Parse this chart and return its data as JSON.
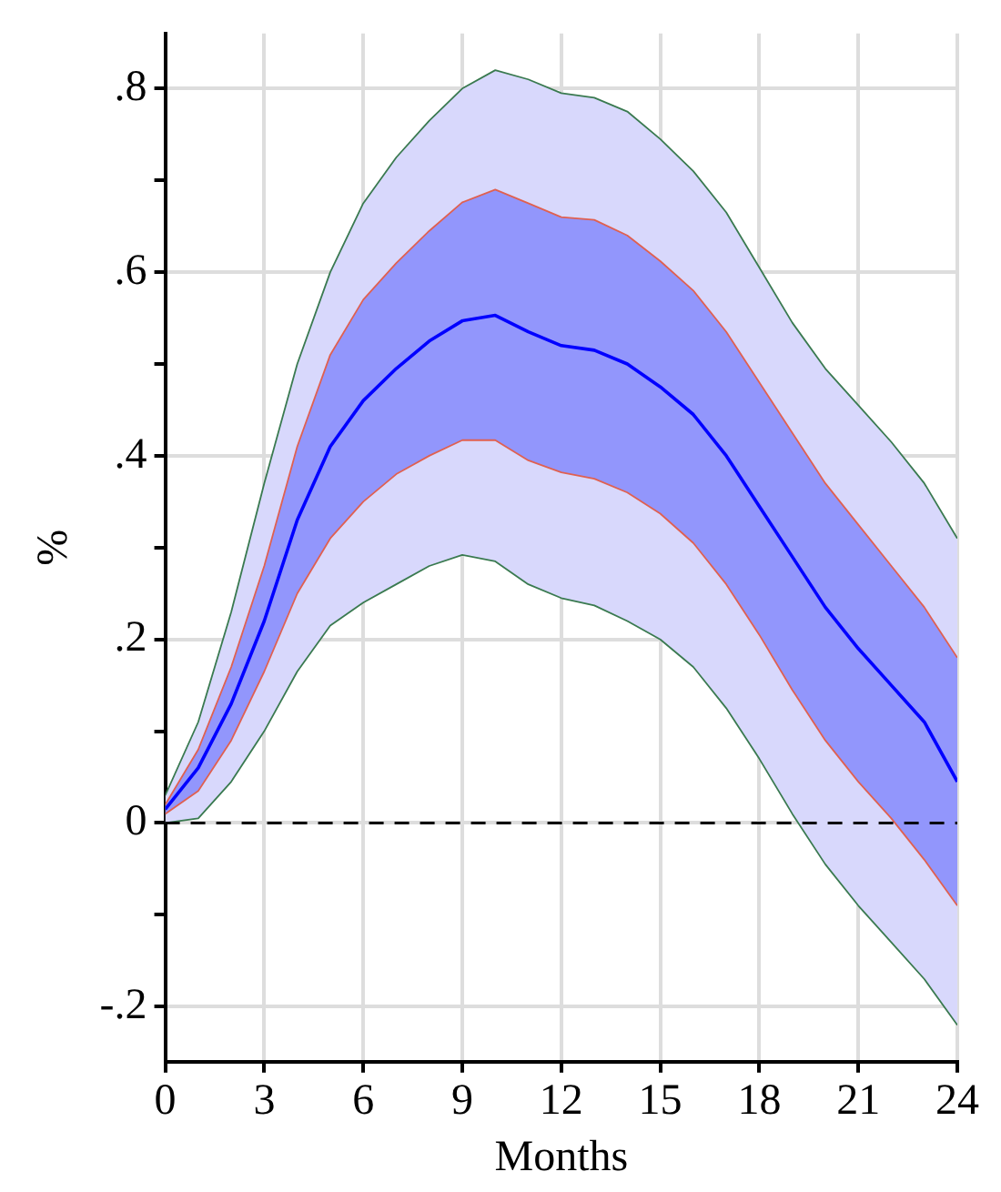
{
  "chart_data": {
    "type": "line",
    "xlabel": "Months",
    "ylabel": "%",
    "x": [
      0,
      1,
      2,
      3,
      4,
      5,
      6,
      7,
      8,
      9,
      10,
      11,
      12,
      13,
      14,
      15,
      16,
      17,
      18,
      19,
      20,
      21,
      22,
      23,
      24
    ],
    "series": [
      {
        "color": "#d8d8fc",
        "values": [
          null,
          null,
          null,
          null,
          null,
          null,
          null,
          null,
          null,
          null,
          null,
          null,
          null,
          null,
          null,
          null,
          null,
          null,
          null,
          null,
          null,
          null,
          null,
          null,
          null
        ],
        "lower": [
          0.0,
          0.005,
          0.045,
          0.1,
          0.165,
          0.215,
          0.24,
          0.26,
          0.28,
          0.292,
          0.285,
          0.26,
          0.245,
          0.237,
          0.22,
          0.2,
          0.17,
          0.125,
          0.07,
          0.01,
          -0.045,
          -0.09,
          -0.13,
          -0.17,
          -0.22
        ],
        "upper": [
          0.03,
          0.11,
          0.23,
          0.37,
          0.5,
          0.6,
          0.675,
          0.725,
          0.765,
          0.8,
          0.82,
          0.81,
          0.795,
          0.79,
          0.775,
          0.745,
          0.71,
          0.665,
          0.605,
          0.545,
          0.495,
          0.455,
          0.415,
          0.37,
          0.31
        ]
      },
      {
        "color": "#9296fc",
        "values": [
          null,
          null,
          null,
          null,
          null,
          null,
          null,
          null,
          null,
          null,
          null,
          null,
          null,
          null,
          null,
          null,
          null,
          null,
          null,
          null,
          null,
          null,
          null,
          null,
          null
        ],
        "lower": [
          0.01,
          0.035,
          0.09,
          0.165,
          0.25,
          0.31,
          0.35,
          0.38,
          0.4,
          0.417,
          0.417,
          0.395,
          0.382,
          0.375,
          0.36,
          0.337,
          0.305,
          0.26,
          0.205,
          0.145,
          0.09,
          0.045,
          0.005,
          -0.04,
          -0.09
        ],
        "upper": [
          0.02,
          0.08,
          0.17,
          0.28,
          0.41,
          0.51,
          0.57,
          0.61,
          0.645,
          0.676,
          0.69,
          0.675,
          0.66,
          0.657,
          0.64,
          0.612,
          0.58,
          0.535,
          0.48,
          0.425,
          0.37,
          0.325,
          0.28,
          0.235,
          0.18
        ]
      },
      {
        "color": "#3a7a50",
        "values": [
          0.03,
          0.11,
          0.23,
          0.37,
          0.5,
          0.6,
          0.675,
          0.725,
          0.765,
          0.8,
          0.82,
          0.81,
          0.795,
          0.79,
          0.775,
          0.745,
          0.71,
          0.665,
          0.605,
          0.545,
          0.495,
          0.455,
          0.415,
          0.37,
          0.31
        ]
      },
      {
        "color": "#3a7a50",
        "values": [
          0.0,
          0.005,
          0.045,
          0.1,
          0.165,
          0.215,
          0.24,
          0.26,
          0.28,
          0.292,
          0.285,
          0.26,
          0.245,
          0.237,
          0.22,
          0.2,
          0.17,
          0.125,
          0.07,
          0.01,
          -0.045,
          -0.09,
          -0.13,
          -0.17,
          -0.22
        ]
      },
      {
        "color": "#e06050",
        "values": [
          0.02,
          0.08,
          0.17,
          0.28,
          0.41,
          0.51,
          0.57,
          0.61,
          0.645,
          0.676,
          0.69,
          0.675,
          0.66,
          0.657,
          0.64,
          0.612,
          0.58,
          0.535,
          0.48,
          0.425,
          0.37,
          0.325,
          0.28,
          0.235,
          0.18
        ]
      },
      {
        "color": "#e06050",
        "values": [
          0.01,
          0.035,
          0.09,
          0.165,
          0.25,
          0.31,
          0.35,
          0.38,
          0.4,
          0.417,
          0.417,
          0.395,
          0.382,
          0.375,
          0.36,
          0.337,
          0.305,
          0.26,
          0.205,
          0.145,
          0.09,
          0.045,
          0.005,
          -0.04,
          -0.09
        ]
      },
      {
        "color": "#0000ff",
        "values": [
          0.015,
          0.06,
          0.13,
          0.22,
          0.33,
          0.41,
          0.46,
          0.495,
          0.525,
          0.547,
          0.553,
          0.535,
          0.52,
          0.515,
          0.5,
          0.475,
          0.445,
          0.4,
          0.345,
          0.29,
          0.235,
          0.19,
          0.15,
          0.11,
          0.045
        ]
      }
    ],
    "xlim": [
      0,
      24
    ],
    "xticks": [
      0,
      3,
      6,
      9,
      12,
      15,
      18,
      21,
      24
    ],
    "ylim": [
      -0.26,
      0.86
    ],
    "yticks": [
      {
        "value": -0.2,
        "label": "-.2"
      },
      {
        "value": -0.1,
        "label": null
      },
      {
        "value": 0,
        "label": "0"
      },
      {
        "value": 0.1,
        "label": null
      },
      {
        "value": 0.2,
        "label": ".2"
      },
      {
        "value": 0.3,
        "label": null
      },
      {
        "value": 0.4,
        "label": ".4"
      },
      {
        "value": 0.5,
        "label": null
      },
      {
        "value": 0.6,
        "label": ".6"
      },
      {
        "value": 0.7,
        "label": null
      },
      {
        "value": 0.8,
        "label": ".8"
      }
    ],
    "ref_lines": [
      {
        "axis": "y",
        "value": 0,
        "color": "#000000",
        "line_style": "dashed"
      }
    ],
    "grid": true,
    "legend": false,
    "marker": "none"
  }
}
